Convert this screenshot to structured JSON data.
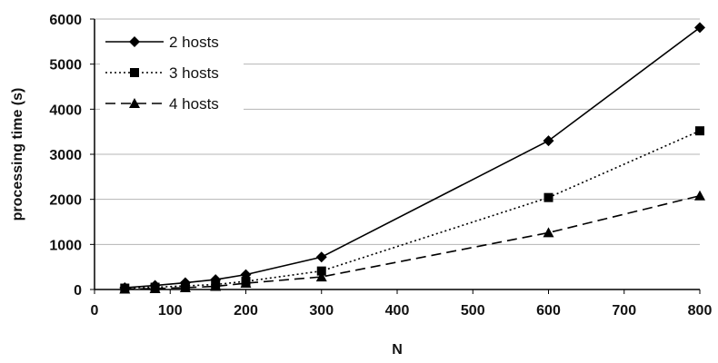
{
  "chart_data": {
    "type": "line",
    "xlabel": "N",
    "ylabel": "processing time (s)",
    "xlim": [
      0,
      800
    ],
    "ylim": [
      0,
      6000
    ],
    "xticks": [
      0,
      100,
      200,
      300,
      400,
      500,
      600,
      700,
      800
    ],
    "yticks": [
      0,
      1000,
      2000,
      3000,
      4000,
      5000,
      6000
    ],
    "grid": "horizontal",
    "legend_position": "top-left",
    "series": [
      {
        "name": "2 hosts",
        "style": "solid",
        "marker": "diamond",
        "points": [
          [
            40,
            40
          ],
          [
            80,
            90
          ],
          [
            120,
            150
          ],
          [
            160,
            220
          ],
          [
            200,
            330
          ],
          [
            300,
            720
          ],
          [
            600,
            3300
          ],
          [
            800,
            5810
          ]
        ]
      },
      {
        "name": "3 hosts",
        "style": "dotted",
        "marker": "square",
        "points": [
          [
            40,
            30
          ],
          [
            80,
            50
          ],
          [
            120,
            80
          ],
          [
            160,
            110
          ],
          [
            200,
            180
          ],
          [
            300,
            410
          ],
          [
            600,
            2040
          ],
          [
            800,
            3520
          ]
        ]
      },
      {
        "name": "4 hosts",
        "style": "dashed",
        "marker": "triangle",
        "points": [
          [
            40,
            10
          ],
          [
            80,
            20
          ],
          [
            120,
            40
          ],
          [
            160,
            70
          ],
          [
            200,
            140
          ],
          [
            300,
            280
          ],
          [
            600,
            1260
          ],
          [
            800,
            2080
          ]
        ]
      }
    ]
  }
}
